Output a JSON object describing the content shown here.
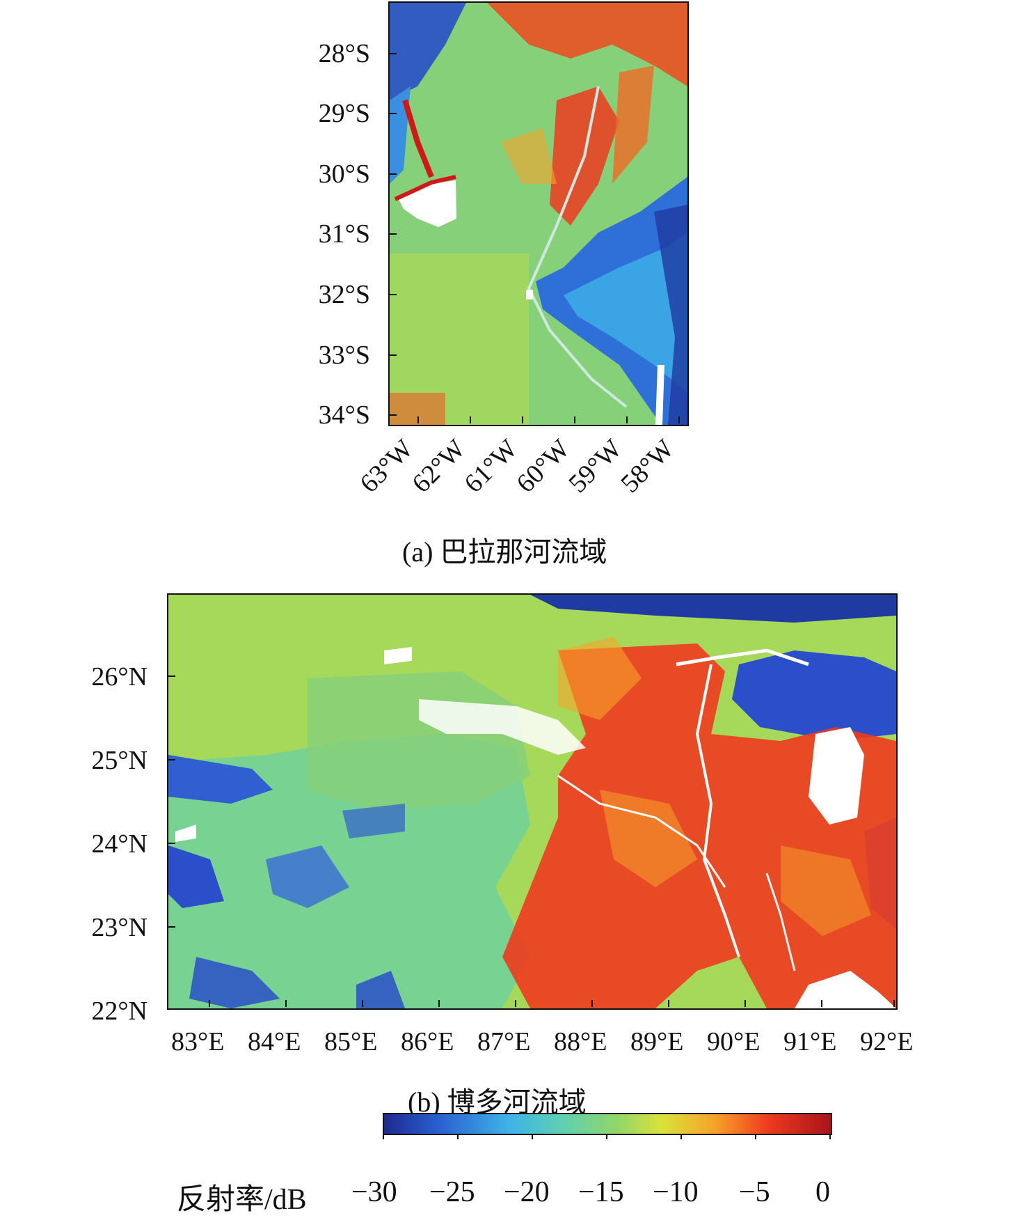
{
  "panel_a": {
    "caption": "(a) 巴拉那河流域",
    "lat_labels": [
      "28°S",
      "29°S",
      "30°S",
      "31°S",
      "32°S",
      "33°S",
      "34°S"
    ],
    "lon_labels": [
      "63°W",
      "62°W",
      "61°W",
      "60°W",
      "59°W",
      "58°W"
    ]
  },
  "panel_b": {
    "caption": "(b) 博多河流域",
    "lat_labels": [
      "26°N",
      "25°N",
      "24°N",
      "23°N",
      "22°N"
    ],
    "lon_labels": [
      "83°E",
      "84°E",
      "85°E",
      "86°E",
      "87°E",
      "88°E",
      "89°E",
      "90°E",
      "91°E",
      "92°E"
    ]
  },
  "colorbar": {
    "title": "反射率/dB",
    "ticks": [
      "−30",
      "−25",
      "−20",
      "−15",
      "−10",
      "−5",
      "0"
    ],
    "colors": [
      "#1f2a8f",
      "#2a5fd0",
      "#3fb2e8",
      "#5fd0b0",
      "#8fd66a",
      "#d9e23a",
      "#f6a32a",
      "#ee3a1e",
      "#a8141c"
    ]
  }
}
